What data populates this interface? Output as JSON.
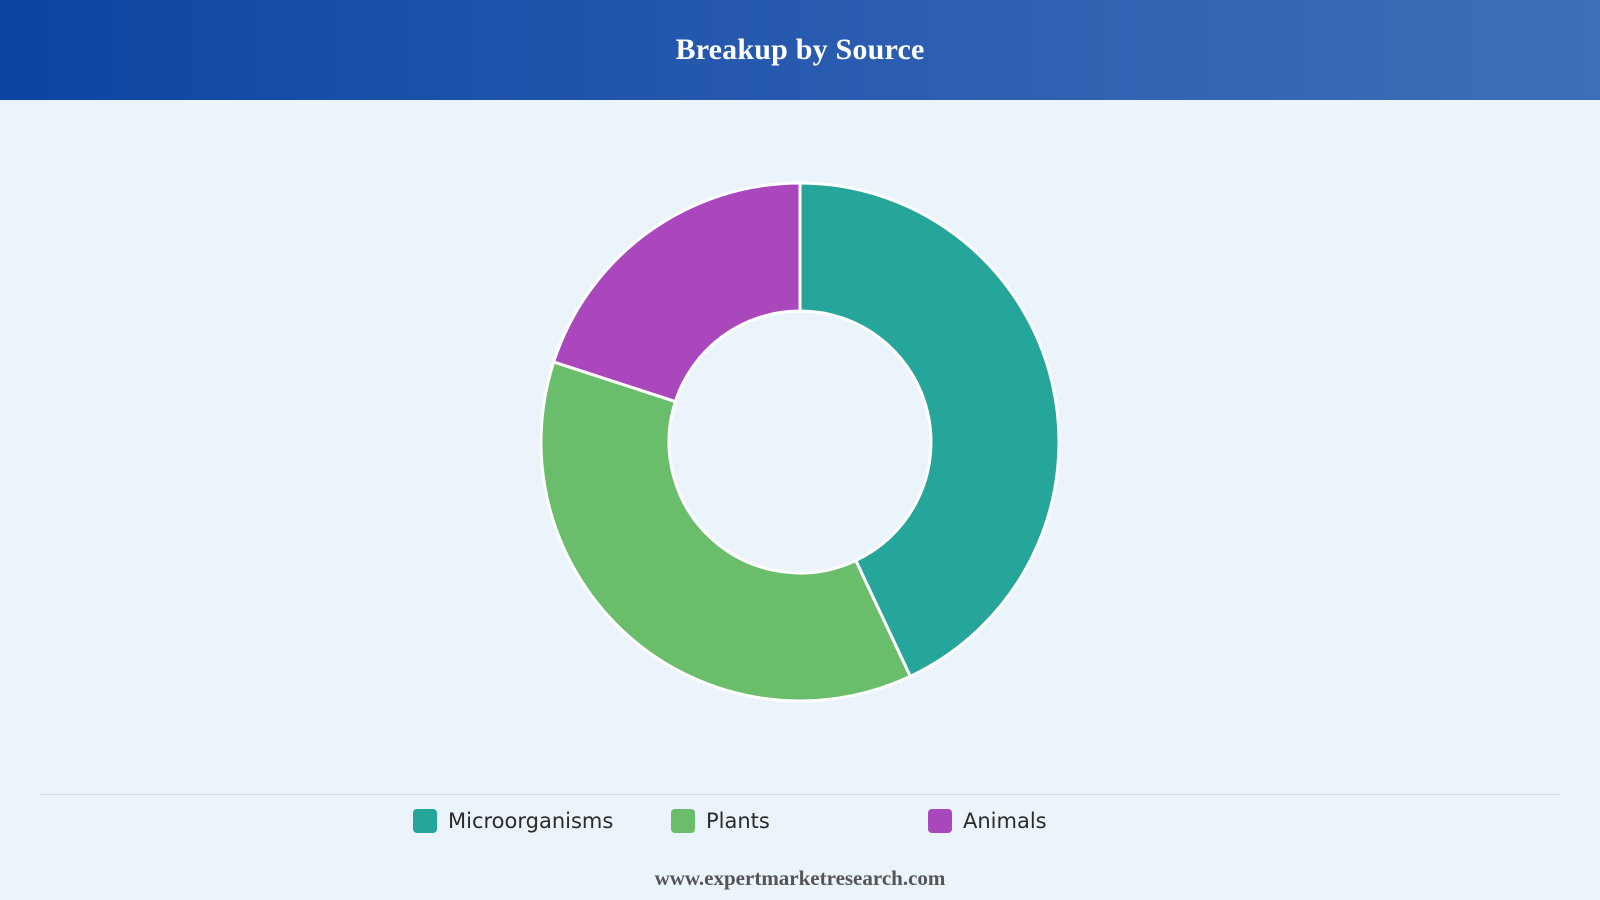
{
  "header": {
    "title": "Breakup by Source"
  },
  "colors": {
    "microorganisms": "#26a69a",
    "plants": "#6abd6b",
    "animals": "#ab47bc",
    "slice_border": "#ffffff"
  },
  "chart_data": {
    "type": "pie",
    "donut": true,
    "title": "Breakup by Source",
    "categories": [
      "Microorganisms",
      "Plants",
      "Animals"
    ],
    "values": [
      43,
      37,
      20
    ],
    "unit": "%",
    "legend_position": "bottom"
  },
  "legend": {
    "items": [
      {
        "label": "Microorganisms",
        "color": "#26a69a"
      },
      {
        "label": "Plants",
        "color": "#6abd6b"
      },
      {
        "label": "Animals",
        "color": "#ab47bc"
      }
    ]
  },
  "footer": {
    "source_url": "www.expertmarketresearch.com"
  }
}
